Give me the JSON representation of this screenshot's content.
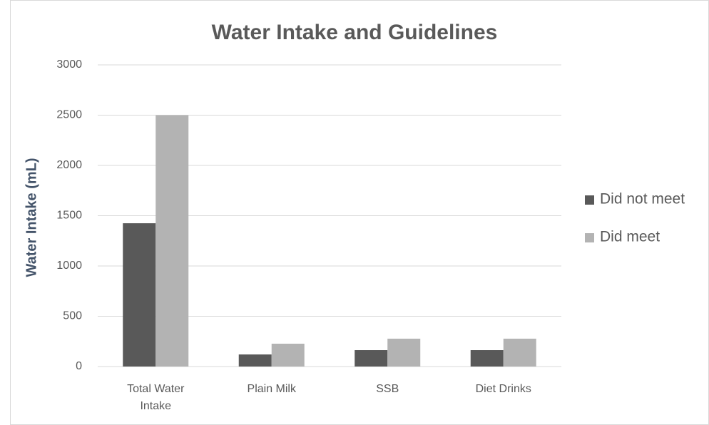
{
  "chart_data": {
    "type": "bar",
    "title": "Water Intake and Guidelines",
    "y_label": "Water Intake (mL)",
    "categories": [
      "Total Water Intake",
      "Plain Milk",
      "SSB",
      "Diet Drinks"
    ],
    "series": [
      {
        "name": "Did not meet",
        "color": "#595959",
        "values": [
          1425,
          120,
          163,
          163
        ]
      },
      {
        "name": "Did meet",
        "color": "#b3b3b3",
        "values": [
          2500,
          227,
          277,
          277
        ]
      }
    ],
    "ylim": [
      0,
      3000
    ],
    "yticks": [
      0,
      500,
      1000,
      1500,
      2000,
      2500,
      3000
    ],
    "grid": true,
    "legend": "right"
  }
}
